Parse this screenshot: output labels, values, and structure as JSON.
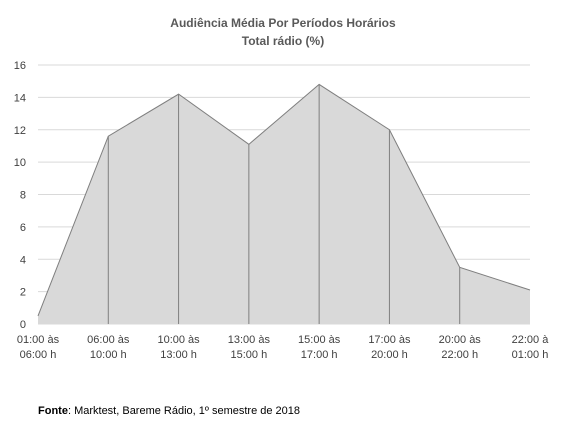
{
  "chart_data": {
    "type": "area",
    "title": "Audiência Média Por Períodos Horários",
    "subtitle": "Total rádio (%)",
    "categories": [
      [
        "01:00 às",
        "06:00 h"
      ],
      [
        "06:00 às",
        "10:00 h"
      ],
      [
        "10:00 às",
        "13:00 h"
      ],
      [
        "13:00 às",
        "15:00 h"
      ],
      [
        "15:00 às",
        "17:00 h"
      ],
      [
        "17:00 às",
        "20:00 h"
      ],
      [
        "20:00 às",
        "22:00 h"
      ],
      [
        "22:00 à",
        "01:00 h"
      ]
    ],
    "values": [
      0.5,
      11.6,
      14.2,
      11.1,
      14.8,
      12.0,
      3.5,
      2.1
    ],
    "ylim": [
      0,
      16
    ],
    "yticks": [
      0,
      2,
      4,
      6,
      8,
      10,
      12,
      14,
      16
    ],
    "grid": true,
    "xlabel": "",
    "ylabel": "",
    "colors": {
      "area": "#d9d9d9",
      "line": "#7f7f7f",
      "grid": "#d9d9d9"
    }
  },
  "source": {
    "label": "Fonte",
    "text": ": Marktest, Bareme Rádio, 1º semestre de 2018"
  }
}
